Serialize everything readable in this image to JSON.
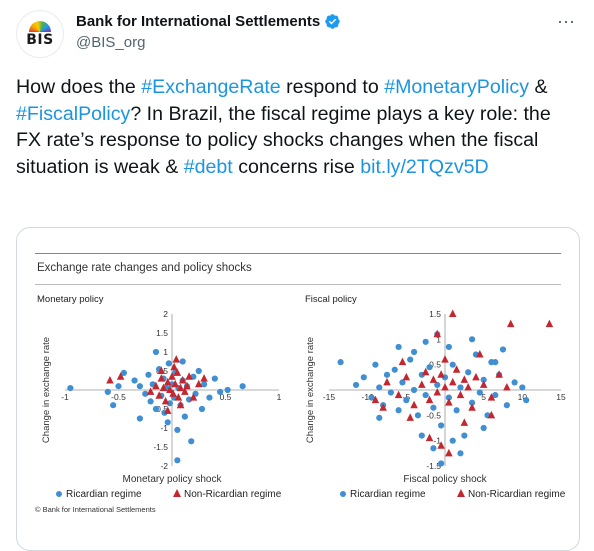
{
  "account": {
    "avatar_text": "BIS",
    "display_name": "Bank for International Settlements",
    "handle": "@BIS_org"
  },
  "tweet": {
    "segments": [
      {
        "text": "How does the ",
        "link": false
      },
      {
        "text": "#ExchangeRate",
        "link": true
      },
      {
        "text": " respond to ",
        "link": false
      },
      {
        "text": "#MonetaryPolicy",
        "link": true
      },
      {
        "text": " & ",
        "link": false
      },
      {
        "text": "#FiscalPolicy",
        "link": true
      },
      {
        "text": "? In Brazil, the fiscal regime plays a key role: the FX rate’s response to policy shocks changes when the fiscal situation is weak & ",
        "link": false
      },
      {
        "text": "#debt",
        "link": true
      },
      {
        "text": " concerns rise ",
        "link": false
      },
      {
        "text": "bit.ly/2TQzv5D",
        "link": true
      }
    ]
  },
  "figure": {
    "title": "Exchange rate changes and policy shocks",
    "footer": "© Bank for International Settlements",
    "colors": {
      "ricardian": "#3f8fd2",
      "non_ricardian": "#c3272f"
    }
  },
  "chart_data": [
    {
      "type": "scatter",
      "title": "Monetary policy",
      "xlabel": "Monetary policy shock",
      "ylabel": "Change in exchange rate",
      "xlim": [
        -1,
        1
      ],
      "ylim": [
        -2,
        2
      ],
      "x_ticks": [
        "-1",
        "-0.5",
        "0.5",
        "1"
      ],
      "y_ticks": [
        "2",
        "1.5",
        "1",
        "0.5",
        "-0.5",
        "-1",
        "-1.5",
        "-2"
      ],
      "legend": [
        "Ricardian regime",
        "Non-Ricardian regime"
      ],
      "series": [
        {
          "name": "Ricardian regime",
          "marker": "circle",
          "points": [
            [
              -0.95,
              0.05
            ],
            [
              -0.35,
              0.25
            ],
            [
              -0.3,
              0.1
            ],
            [
              -0.25,
              -0.1
            ],
            [
              -0.22,
              0.4
            ],
            [
              -0.2,
              -0.3
            ],
            [
              -0.18,
              0.15
            ],
            [
              -0.15,
              -0.5
            ],
            [
              -0.12,
              0.55
            ],
            [
              -0.1,
              -0.15
            ],
            [
              -0.08,
              0.3
            ],
            [
              -0.07,
              -0.6
            ],
            [
              -0.05,
              0.05
            ],
            [
              -0.04,
              -0.85
            ],
            [
              -0.03,
              0.7
            ],
            [
              -0.02,
              -0.35
            ],
            [
              0.0,
              0.15
            ],
            [
              0.02,
              -0.2
            ],
            [
              0.03,
              0.45
            ],
            [
              0.05,
              -1.05
            ],
            [
              0.06,
              0.05
            ],
            [
              0.08,
              -0.4
            ],
            [
              0.1,
              0.25
            ],
            [
              0.12,
              -0.7
            ],
            [
              0.14,
              0.1
            ],
            [
              0.16,
              -0.25
            ],
            [
              0.18,
              -1.35
            ],
            [
              0.2,
              0.35
            ],
            [
              0.22,
              -0.1
            ],
            [
              0.25,
              0.5
            ],
            [
              0.28,
              -0.5
            ],
            [
              0.3,
              0.15
            ],
            [
              0.35,
              -0.2
            ],
            [
              0.4,
              0.3
            ],
            [
              0.45,
              -0.05
            ],
            [
              0.52,
              0.0
            ],
            [
              0.66,
              0.1
            ],
            [
              -0.6,
              -0.05
            ],
            [
              -0.55,
              -0.4
            ],
            [
              -0.45,
              0.45
            ],
            [
              0.05,
              -1.85
            ],
            [
              -0.15,
              1.0
            ],
            [
              -0.3,
              -0.75
            ],
            [
              0.1,
              0.75
            ],
            [
              -0.5,
              0.1
            ]
          ]
        },
        {
          "name": "Non-Ricardian regime",
          "marker": "triangle",
          "points": [
            [
              -0.58,
              0.25
            ],
            [
              -0.48,
              0.35
            ],
            [
              -0.15,
              0.1
            ],
            [
              -0.12,
              -0.15
            ],
            [
              -0.1,
              0.3
            ],
            [
              -0.08,
              0.05
            ],
            [
              -0.06,
              -0.3
            ],
            [
              -0.04,
              0.2
            ],
            [
              -0.02,
              0.0
            ],
            [
              0.0,
              0.35
            ],
            [
              0.01,
              -0.1
            ],
            [
              0.03,
              0.15
            ],
            [
              0.05,
              0.45
            ],
            [
              0.06,
              -0.2
            ],
            [
              0.08,
              0.05
            ],
            [
              0.1,
              0.25
            ],
            [
              0.12,
              -0.05
            ],
            [
              0.14,
              0.1
            ],
            [
              0.16,
              0.35
            ],
            [
              0.2,
              -0.2
            ],
            [
              0.25,
              0.15
            ],
            [
              -0.04,
              -0.55
            ],
            [
              0.02,
              0.6
            ],
            [
              -0.1,
              0.5
            ],
            [
              0.08,
              -0.4
            ],
            [
              0.3,
              0.3
            ],
            [
              -0.2,
              -0.05
            ],
            [
              0.04,
              0.8
            ]
          ]
        }
      ]
    },
    {
      "type": "scatter",
      "title": "Fiscal policy",
      "xlabel": "Fiscal policy shock",
      "ylabel": "Change in exchange rate",
      "xlim": [
        -15,
        15
      ],
      "ylim": [
        -1.5,
        1.5
      ],
      "x_ticks": [
        "-15",
        "-10",
        "-5",
        "5",
        "10",
        "15"
      ],
      "y_ticks": [
        "1.5",
        "1",
        "0.5",
        "-0.5",
        "-1",
        "-1.5"
      ],
      "legend": [
        "Ricardian regime",
        "Non-Ricardian regime"
      ],
      "series": [
        {
          "name": "Ricardian regime",
          "marker": "circle",
          "points": [
            [
              -13.5,
              0.55
            ],
            [
              -11.5,
              0.1
            ],
            [
              -10.5,
              0.25
            ],
            [
              -9.5,
              -0.15
            ],
            [
              -9,
              0.5
            ],
            [
              -8.5,
              0.05
            ],
            [
              -8,
              -0.3
            ],
            [
              -7.5,
              0.3
            ],
            [
              -7,
              -0.05
            ],
            [
              -6.5,
              0.4
            ],
            [
              -6,
              -0.4
            ],
            [
              -5.5,
              0.15
            ],
            [
              -5,
              -0.2
            ],
            [
              -4.5,
              0.6
            ],
            [
              -4,
              0.0
            ],
            [
              -3.5,
              -0.5
            ],
            [
              -3,
              0.3
            ],
            [
              -2.5,
              -0.1
            ],
            [
              -2,
              0.45
            ],
            [
              -1.5,
              -0.35
            ],
            [
              -1,
              0.1
            ],
            [
              -0.5,
              -0.7
            ],
            [
              0,
              0.25
            ],
            [
              0.5,
              -0.15
            ],
            [
              1,
              0.5
            ],
            [
              1.5,
              -0.4
            ],
            [
              2,
              0.05
            ],
            [
              2.5,
              -0.9
            ],
            [
              3,
              0.35
            ],
            [
              3.5,
              -0.25
            ],
            [
              4,
              0.7
            ],
            [
              4.5,
              -0.05
            ],
            [
              5,
              0.2
            ],
            [
              5.5,
              -0.5
            ],
            [
              6,
              0.55
            ],
            [
              6.5,
              -0.1
            ],
            [
              7,
              0.3
            ],
            [
              7.5,
              0.8
            ],
            [
              8,
              -0.3
            ],
            [
              9,
              0.15
            ],
            [
              10,
              0.05
            ],
            [
              10.5,
              -0.2
            ],
            [
              -1.5,
              -1.15
            ],
            [
              -0.5,
              -1.45
            ],
            [
              2,
              -1.25
            ],
            [
              -2.5,
              0.95
            ],
            [
              -1,
              1.1
            ],
            [
              3.5,
              1.0
            ],
            [
              -6,
              0.85
            ],
            [
              -8.5,
              -0.55
            ],
            [
              5,
              -0.75
            ],
            [
              1,
              -1.0
            ],
            [
              -4,
              0.75
            ],
            [
              -3,
              -0.9
            ],
            [
              0.5,
              0.85
            ],
            [
              6.5,
              0.55
            ]
          ]
        },
        {
          "name": "Non-Ricardian regime",
          "marker": "triangle",
          "points": [
            [
              -9,
              -0.2
            ],
            [
              -7.5,
              0.15
            ],
            [
              -6,
              -0.1
            ],
            [
              -5,
              0.25
            ],
            [
              -4,
              -0.3
            ],
            [
              -3,
              0.1
            ],
            [
              -2.5,
              0.35
            ],
            [
              -2,
              -0.2
            ],
            [
              -1.5,
              0.2
            ],
            [
              -1,
              -0.05
            ],
            [
              -0.5,
              0.3
            ],
            [
              0,
              0.05
            ],
            [
              0.5,
              -0.25
            ],
            [
              1,
              0.15
            ],
            [
              1.5,
              0.4
            ],
            [
              2,
              -0.1
            ],
            [
              2.5,
              0.2
            ],
            [
              3,
              0.05
            ],
            [
              3.5,
              -0.35
            ],
            [
              4,
              0.25
            ],
            [
              5,
              0.1
            ],
            [
              6,
              -0.15
            ],
            [
              7,
              0.3
            ],
            [
              8,
              0.05
            ],
            [
              -1,
              1.1
            ],
            [
              1,
              1.5
            ],
            [
              -0.5,
              -1.1
            ],
            [
              -2,
              -0.95
            ],
            [
              0.5,
              -1.25
            ],
            [
              8.5,
              1.3
            ],
            [
              13.5,
              1.3
            ],
            [
              -4.5,
              -0.55
            ],
            [
              2.5,
              -0.65
            ],
            [
              4.5,
              0.7
            ],
            [
              -5.5,
              0.55
            ],
            [
              0,
              0.6
            ],
            [
              -8,
              -0.35
            ],
            [
              6,
              -0.5
            ]
          ]
        }
      ]
    }
  ]
}
